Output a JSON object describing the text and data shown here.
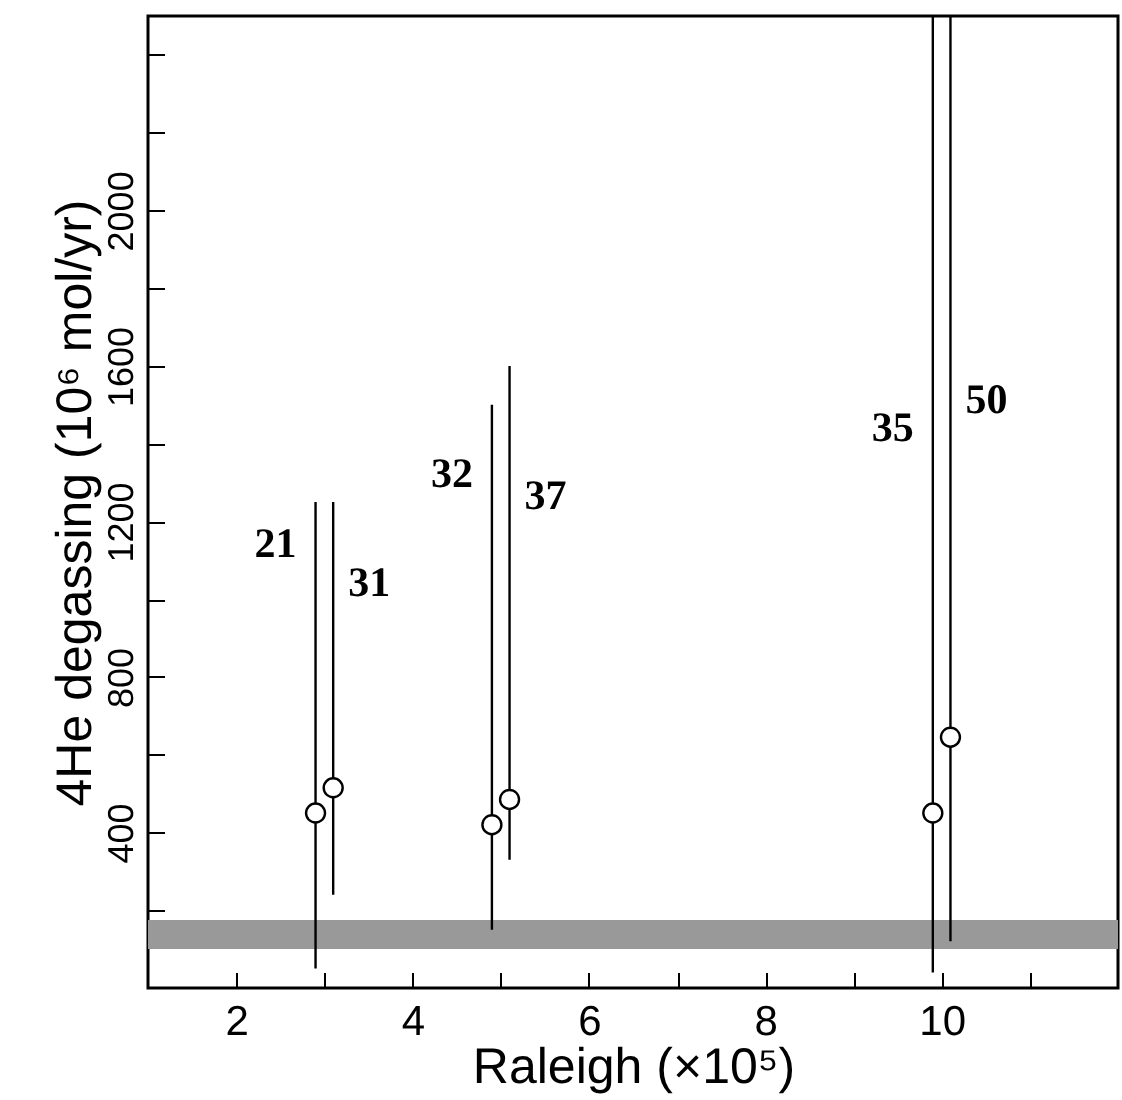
{
  "chart_data": {
    "type": "scatter",
    "xlabel": "Raleigh (×10⁵)",
    "ylabel": "4He degassing (10⁶ mol/yr)",
    "x": [
      2.9,
      3.1,
      4.9,
      5.1,
      9.9,
      10.1
    ],
    "series": [
      {
        "color": "#000000",
        "values": [
          450,
          515,
          420,
          485,
          450,
          645
        ],
        "errors": [
          [
            50,
            1250
          ],
          [
            240,
            1250
          ],
          [
            150,
            1500
          ],
          [
            330,
            1600
          ],
          [
            40,
            2500
          ],
          [
            120,
            2500
          ]
        ]
      }
    ],
    "marker": "circle",
    "xlim": [
      1,
      12
    ],
    "xticks": [
      2,
      {
        "value": 3,
        "label": null
      },
      4,
      {
        "value": 5,
        "label": null
      },
      6,
      {
        "value": 7,
        "label": null
      },
      8,
      {
        "value": 9,
        "label": null
      },
      10,
      {
        "value": 11,
        "label": null
      }
    ],
    "ylim": [
      0,
      2500
    ],
    "yticks": [
      {
        "value": 200,
        "label": null
      },
      400,
      {
        "value": 600,
        "label": null
      },
      800,
      {
        "value": 1000,
        "label": null
      },
      1200,
      {
        "value": 1400,
        "label": null
      },
      1600,
      {
        "value": 1800,
        "label": null
      },
      2000,
      {
        "value": 2200,
        "label": null
      },
      {
        "value": 2400,
        "label": null
      }
    ],
    "bands": [
      {
        "axis": "y",
        "from": 100,
        "to": 175,
        "color": "#999999"
      }
    ],
    "annotations": [
      "21",
      "31",
      "32",
      "37",
      "35",
      "50"
    ],
    "grid": false
  }
}
